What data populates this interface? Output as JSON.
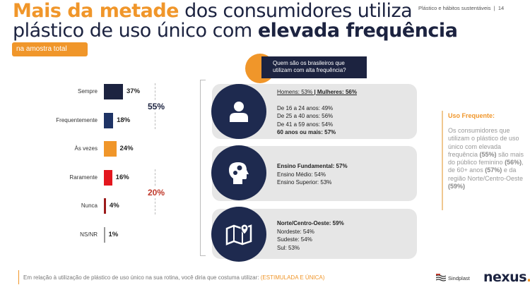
{
  "header": {
    "section": "Plástico e hábitos sustentáveis",
    "separator": "|",
    "page": "14"
  },
  "title": {
    "highlight": "Mais da metade",
    "part1": " dos consumidores utiliza",
    "part2": "plástico de uso único com ",
    "bold": "elevada frequência"
  },
  "subtitle_pill": "na amostra total",
  "chart_data": {
    "type": "bar",
    "orientation": "horizontal",
    "categories": [
      "Sempre",
      "Frequentemente",
      "Às vezes",
      "Raramente",
      "Nunca",
      "NS/NR"
    ],
    "values": [
      37,
      18,
      24,
      16,
      4,
      1
    ],
    "value_labels": [
      "37%",
      "18%",
      "24%",
      "16%",
      "4%",
      "1%"
    ],
    "colors": [
      "#1c2340",
      "#1e3365",
      "#f0962a",
      "#e3161e",
      "#9c1b1b",
      "#999999"
    ],
    "groups": [
      {
        "label": "55%",
        "categories": [
          "Sempre",
          "Frequentemente"
        ],
        "color": "#1c2340"
      },
      {
        "label": "20%",
        "categories": [
          "Raramente",
          "Nunca"
        ],
        "color": "#c0392b"
      }
    ]
  },
  "question": "Quem são os brasileiros que utilizam com alta frequência?",
  "cards": [
    {
      "icon": "person-icon",
      "lines": [
        {
          "t": "Homens: 53% ",
          "b": false,
          "u": true
        },
        {
          "t": "| Mulheres: 56%",
          "b": true,
          "u": true
        }
      ],
      "rows": [
        {
          "t": "De 16 a 24 anos: 49%",
          "b": false
        },
        {
          "t": "De 25 a 40 anos: 56%",
          "b": false
        },
        {
          "t": "De 41 a 59 anos: 54%",
          "b": false
        },
        {
          "t": "60 anos ou mais: 57%",
          "b": true
        }
      ]
    },
    {
      "icon": "head-gears-icon",
      "rows": [
        {
          "t": "Ensino Fundamental: 57%",
          "b": true
        },
        {
          "t": "Ensino Médio: 54%",
          "b": false
        },
        {
          "t": "Ensino Superior: 53%",
          "b": false
        }
      ]
    },
    {
      "icon": "map-pin-icon",
      "rows": [
        {
          "t": "Norte/Centro-Oeste: 59%",
          "b": true
        },
        {
          "t": "Nordeste: 54%",
          "b": false
        },
        {
          "t": "Sudeste: 54%",
          "b": false
        },
        {
          "t": "Sul: 53%",
          "b": false
        }
      ]
    }
  ],
  "note": {
    "title": "Uso Frequente:",
    "body": [
      "Os consumidores que utilizam o plástico de uso único com elevada frequência ",
      "(55%)",
      " são mais do público feminino ",
      "(56%)",
      ", de 60+ anos ",
      "(57%)",
      " e da região Norte/Centro-Oeste ",
      "(59%)"
    ]
  },
  "footer": {
    "question": "Em relação à utilização de plástico de uso único na sua rotina, você diria que costuma utilizar: ",
    "tag": "(ESTIMULADA E ÚNICA)"
  },
  "logos": {
    "sindplast": "Sindplast",
    "nexus": "nexus"
  },
  "colors": {
    "orange": "#f0962a",
    "navy": "#1c2340",
    "card": "#e6e6e6"
  }
}
